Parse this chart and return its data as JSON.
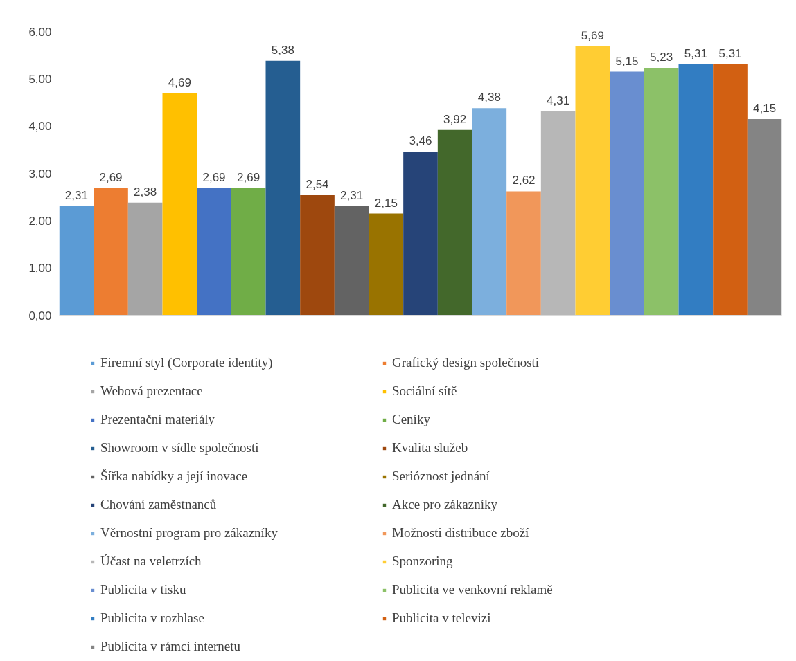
{
  "chart_data": {
    "type": "bar",
    "categories": [
      null
    ],
    "ylim": [
      0,
      6
    ],
    "yticks": [
      {
        "value": 0,
        "label": "0,00"
      },
      {
        "value": 1,
        "label": "1,00"
      },
      {
        "value": 2,
        "label": "2,00"
      },
      {
        "value": 3,
        "label": "3,00"
      },
      {
        "value": 4,
        "label": "4,00"
      },
      {
        "value": 5,
        "label": "5,00"
      },
      {
        "value": 6,
        "label": "6,00"
      }
    ],
    "grid": false,
    "legend": "bottom",
    "tick_labels": "y",
    "series": [
      {
        "name": "Firemní styl (Corporate identity)",
        "color": "#5b9bd5",
        "values": [
          2.31
        ],
        "value_labels": [
          "2,31"
        ]
      },
      {
        "name": "Grafický design společnosti",
        "color": "#ed7d31",
        "values": [
          2.69
        ],
        "value_labels": [
          "2,69"
        ]
      },
      {
        "name": "Webová prezentace",
        "color": "#a5a5a5",
        "values": [
          2.38
        ],
        "value_labels": [
          "2,38"
        ]
      },
      {
        "name": "Sociální sítě",
        "color": "#ffc000",
        "values": [
          4.69
        ],
        "value_labels": [
          "4,69"
        ]
      },
      {
        "name": "Prezentační materiály",
        "color": "#4472c4",
        "values": [
          2.69
        ],
        "value_labels": [
          "2,69"
        ]
      },
      {
        "name": "Ceníky",
        "color": "#70ad47",
        "values": [
          2.69
        ],
        "value_labels": [
          "2,69"
        ]
      },
      {
        "name": "Showroom v sídle společnosti",
        "color": "#255e91",
        "values": [
          5.38
        ],
        "value_labels": [
          "5,38"
        ]
      },
      {
        "name": "Kvalita služeb",
        "color": "#9e480e",
        "values": [
          2.54
        ],
        "value_labels": [
          "2,54"
        ]
      },
      {
        "name": "Šířka nabídky a její inovace",
        "color": "#636363",
        "values": [
          2.31
        ],
        "value_labels": [
          "2,31"
        ]
      },
      {
        "name": "Serióznost jednání",
        "color": "#997300",
        "values": [
          2.15
        ],
        "value_labels": [
          "2,15"
        ]
      },
      {
        "name": "Chování zaměstnanců",
        "color": "#264478",
        "values": [
          3.46
        ],
        "value_labels": [
          "3,46"
        ]
      },
      {
        "name": "Akce pro zákazníky",
        "color": "#43682b",
        "values": [
          3.92
        ],
        "value_labels": [
          "3,92"
        ]
      },
      {
        "name": "Věrnostní program pro zákazníky",
        "color": "#7cafdd",
        "values": [
          4.38
        ],
        "value_labels": [
          "4,38"
        ]
      },
      {
        "name": "Možnosti distribuce zboží",
        "color": "#f1975a",
        "values": [
          2.62
        ],
        "value_labels": [
          "2,62"
        ]
      },
      {
        "name": "Účast na veletrzích",
        "color": "#b7b7b7",
        "values": [
          4.31
        ],
        "value_labels": [
          "4,31"
        ]
      },
      {
        "name": "Sponzoring",
        "color": "#ffcd33",
        "values": [
          5.69
        ],
        "value_labels": [
          "5,69"
        ]
      },
      {
        "name": "Publicita v tisku",
        "color": "#698ed0",
        "values": [
          5.15
        ],
        "value_labels": [
          "5,15"
        ]
      },
      {
        "name": "Publicita ve venkovní reklamě",
        "color": "#8cc168",
        "values": [
          5.23
        ],
        "value_labels": [
          "5,23"
        ]
      },
      {
        "name": "Publicita v rozhlase",
        "color": "#327dc2",
        "values": [
          5.31
        ],
        "value_labels": [
          "5,31"
        ]
      },
      {
        "name": "Publicita v televizi",
        "color": "#d26012",
        "values": [
          5.31
        ],
        "value_labels": [
          "5,31"
        ]
      },
      {
        "name": "Publicita v rámci internetu",
        "color": "#848484",
        "values": [
          4.15
        ],
        "value_labels": [
          "4,15"
        ]
      }
    ]
  }
}
